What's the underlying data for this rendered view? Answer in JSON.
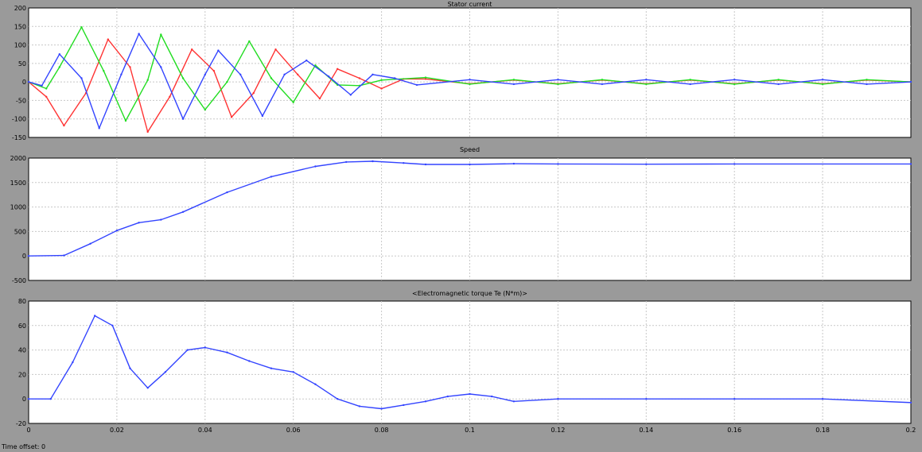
{
  "footer_text": "Time offset: 0",
  "x_ticks": [
    "0",
    "0.02",
    "0.04",
    "0.06",
    "0.08",
    "0.1",
    "0.12",
    "0.14",
    "0.16",
    "0.18",
    "0.2"
  ],
  "chart_data": [
    {
      "type": "line",
      "title": "Stator current",
      "xlim": [
        0,
        0.2
      ],
      "ylim": [
        -150,
        200
      ],
      "yticks": [
        -150,
        -100,
        -50,
        0,
        50,
        100,
        150,
        200
      ],
      "grid": true,
      "series": [
        {
          "color": "#ff3333",
          "values": [
            [
              0.0,
              0
            ],
            [
              0.004,
              -40
            ],
            [
              0.008,
              -118
            ],
            [
              0.013,
              -30
            ],
            [
              0.018,
              115
            ],
            [
              0.023,
              40
            ],
            [
              0.027,
              -135
            ],
            [
              0.032,
              -40
            ],
            [
              0.037,
              88
            ],
            [
              0.042,
              30
            ],
            [
              0.046,
              -95
            ],
            [
              0.051,
              -30
            ],
            [
              0.056,
              88
            ],
            [
              0.061,
              20
            ],
            [
              0.066,
              -45
            ],
            [
              0.07,
              35
            ],
            [
              0.075,
              10
            ],
            [
              0.08,
              -18
            ],
            [
              0.085,
              8
            ],
            [
              0.09,
              8
            ],
            [
              0.1,
              -5
            ],
            [
              0.11,
              5
            ],
            [
              0.12,
              -5
            ],
            [
              0.13,
              5
            ],
            [
              0.14,
              -5
            ],
            [
              0.15,
              5
            ],
            [
              0.16,
              -5
            ],
            [
              0.17,
              5
            ],
            [
              0.18,
              -5
            ],
            [
              0.19,
              5
            ],
            [
              0.2,
              0
            ]
          ]
        },
        {
          "color": "#22dd22",
          "values": [
            [
              0.0,
              0
            ],
            [
              0.004,
              -18
            ],
            [
              0.007,
              40
            ],
            [
              0.012,
              148
            ],
            [
              0.017,
              30
            ],
            [
              0.022,
              -105
            ],
            [
              0.027,
              5
            ],
            [
              0.03,
              128
            ],
            [
              0.035,
              10
            ],
            [
              0.04,
              -75
            ],
            [
              0.045,
              0
            ],
            [
              0.05,
              110
            ],
            [
              0.055,
              10
            ],
            [
              0.06,
              -55
            ],
            [
              0.065,
              45
            ],
            [
              0.07,
              -8
            ],
            [
              0.075,
              -10
            ],
            [
              0.08,
              5
            ],
            [
              0.09,
              12
            ],
            [
              0.1,
              -6
            ],
            [
              0.11,
              6
            ],
            [
              0.12,
              -6
            ],
            [
              0.13,
              6
            ],
            [
              0.14,
              -6
            ],
            [
              0.15,
              6
            ],
            [
              0.16,
              -6
            ],
            [
              0.17,
              6
            ],
            [
              0.18,
              -6
            ],
            [
              0.19,
              6
            ],
            [
              0.2,
              0
            ]
          ]
        },
        {
          "color": "#3344ff",
          "values": [
            [
              0.0,
              0
            ],
            [
              0.003,
              -10
            ],
            [
              0.007,
              75
            ],
            [
              0.012,
              10
            ],
            [
              0.016,
              -125
            ],
            [
              0.021,
              20
            ],
            [
              0.025,
              130
            ],
            [
              0.03,
              40
            ],
            [
              0.035,
              -100
            ],
            [
              0.04,
              20
            ],
            [
              0.043,
              85
            ],
            [
              0.048,
              20
            ],
            [
              0.053,
              -92
            ],
            [
              0.058,
              20
            ],
            [
              0.063,
              58
            ],
            [
              0.068,
              15
            ],
            [
              0.073,
              -35
            ],
            [
              0.078,
              20
            ],
            [
              0.083,
              10
            ],
            [
              0.088,
              -8
            ],
            [
              0.1,
              6
            ],
            [
              0.11,
              -6
            ],
            [
              0.12,
              6
            ],
            [
              0.13,
              -6
            ],
            [
              0.14,
              6
            ],
            [
              0.15,
              -6
            ],
            [
              0.16,
              6
            ],
            [
              0.17,
              -6
            ],
            [
              0.18,
              6
            ],
            [
              0.19,
              -6
            ],
            [
              0.2,
              0
            ]
          ]
        }
      ]
    },
    {
      "type": "line",
      "title": "Speed",
      "xlim": [
        0,
        0.2
      ],
      "ylim": [
        -500,
        2000
      ],
      "yticks": [
        -500,
        0,
        500,
        1000,
        1500,
        2000
      ],
      "grid": true,
      "series": [
        {
          "color": "#3344ff",
          "values": [
            [
              0.0,
              0
            ],
            [
              0.008,
              10
            ],
            [
              0.014,
              250
            ],
            [
              0.02,
              520
            ],
            [
              0.025,
              680
            ],
            [
              0.03,
              740
            ],
            [
              0.035,
              900
            ],
            [
              0.045,
              1300
            ],
            [
              0.055,
              1620
            ],
            [
              0.065,
              1830
            ],
            [
              0.072,
              1920
            ],
            [
              0.078,
              1935
            ],
            [
              0.085,
              1900
            ],
            [
              0.09,
              1870
            ],
            [
              0.1,
              1870
            ],
            [
              0.11,
              1885
            ],
            [
              0.12,
              1880
            ],
            [
              0.14,
              1875
            ],
            [
              0.16,
              1880
            ],
            [
              0.2,
              1880
            ]
          ]
        }
      ]
    },
    {
      "type": "line",
      "title": "<Electromagnetic torque Te (N*m)>",
      "xlim": [
        0,
        0.2
      ],
      "ylim": [
        -20,
        80
      ],
      "yticks": [
        -20,
        0,
        20,
        40,
        60,
        80
      ],
      "grid": true,
      "series": [
        {
          "color": "#3344ff",
          "values": [
            [
              0.0,
              0
            ],
            [
              0.005,
              0
            ],
            [
              0.01,
              30
            ],
            [
              0.015,
              68
            ],
            [
              0.019,
              60
            ],
            [
              0.023,
              25
            ],
            [
              0.027,
              9
            ],
            [
              0.031,
              22
            ],
            [
              0.036,
              40
            ],
            [
              0.04,
              42
            ],
            [
              0.045,
              38
            ],
            [
              0.05,
              31
            ],
            [
              0.055,
              25
            ],
            [
              0.06,
              22
            ],
            [
              0.065,
              12
            ],
            [
              0.07,
              0
            ],
            [
              0.075,
              -6
            ],
            [
              0.08,
              -8
            ],
            [
              0.085,
              -5
            ],
            [
              0.09,
              -2
            ],
            [
              0.095,
              2
            ],
            [
              0.1,
              4
            ],
            [
              0.105,
              2
            ],
            [
              0.11,
              -2
            ],
            [
              0.12,
              0
            ],
            [
              0.14,
              0
            ],
            [
              0.16,
              0
            ],
            [
              0.18,
              0
            ],
            [
              0.2,
              -3
            ]
          ]
        }
      ]
    }
  ]
}
